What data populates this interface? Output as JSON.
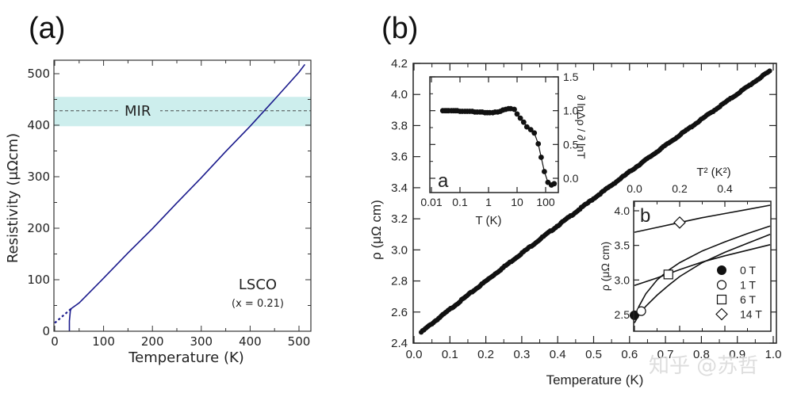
{
  "chart_data": [
    {
      "panel_label": "(a)",
      "type": "line",
      "xlabel": "Temperature (K)",
      "ylabel": "Resistivity (μΩcm)",
      "xlim": [
        0,
        520
      ],
      "ylim": [
        0,
        520
      ],
      "x_ticks": [
        0,
        100,
        200,
        300,
        400,
        500
      ],
      "y_ticks": [
        0,
        100,
        200,
        300,
        400,
        500
      ],
      "band": {
        "label": "MIR",
        "y_low": 398,
        "y_high": 455,
        "line_y": 428,
        "color": "#cdeeed"
      },
      "series": [
        {
          "name": "LSCO x=0.21 (measured)",
          "color": "#1a1a8c",
          "style": "solid",
          "x": [
            30,
            30,
            32,
            34,
            50,
            100,
            150,
            200,
            250,
            300,
            350,
            400,
            450,
            500,
            512
          ],
          "y": [
            0,
            20,
            40,
            44,
            55,
            103,
            152,
            199,
            249,
            298,
            349,
            398,
            450,
            503,
            518
          ]
        },
        {
          "name": "extrapolation",
          "color": "#1a1a8c",
          "style": "dotted",
          "x": [
            0,
            34
          ],
          "y": [
            16,
            44
          ]
        }
      ],
      "annotation": {
        "title": "LSCO",
        "subtitle": "(x = 0.21)"
      }
    },
    {
      "panel_label": "(b)",
      "type": "scatter",
      "xlabel": "Temperature (K)",
      "ylabel": "ρ (μΩ cm)",
      "xlim": [
        0.0,
        1.0
      ],
      "ylim": [
        2.4,
        4.2
      ],
      "x_ticks": [
        "0.0",
        "0.1",
        "0.2",
        "0.3",
        "0.4",
        "0.5",
        "0.6",
        "0.7",
        "0.8",
        "0.9",
        "1.0"
      ],
      "y_ticks": [
        "2.4",
        "2.6",
        "2.8",
        "3.0",
        "3.2",
        "3.4",
        "3.6",
        "3.8",
        "4.0",
        "4.2"
      ],
      "series": [
        {
          "name": "ρ(T)",
          "x_start": 0.02,
          "x_end": 0.99,
          "y_start": 2.47,
          "y_end": 4.15,
          "y_mid_value_at_0_5": 3.33
        }
      ],
      "insets": [
        {
          "label": "a",
          "type": "line",
          "xlabel": "T (K)",
          "ylabel": "∂ lnΔρ / ∂ lnT",
          "xscale": "log",
          "xlim": [
            0.01,
            300
          ],
          "ylim": [
            -0.2,
            1.5
          ],
          "x_ticks": [
            "0.01",
            "0.1",
            "1",
            "10",
            "100"
          ],
          "y_ticks": [
            "0.0",
            "0.5",
            "1.0",
            "1.5"
          ],
          "x": [
            0.025,
            0.03,
            0.035,
            0.04,
            0.05,
            0.06,
            0.07,
            0.08,
            0.1,
            0.12,
            0.15,
            0.18,
            0.22,
            0.27,
            0.33,
            0.4,
            0.5,
            0.6,
            0.75,
            0.9,
            1.1,
            1.4,
            1.7,
            2.1,
            2.6,
            3.2,
            4,
            5,
            6,
            8,
            10,
            13,
            17,
            22,
            30,
            40,
            55,
            70,
            90,
            120,
            160,
            200
          ],
          "y": [
            1.0,
            1.0,
            1.0,
            1.0,
            1.0,
            1.0,
            1.0,
            1.0,
            0.99,
            0.99,
            0.99,
            0.99,
            0.99,
            0.99,
            0.98,
            0.98,
            0.98,
            0.98,
            0.97,
            0.97,
            0.97,
            0.97,
            0.98,
            0.98,
            0.99,
            1.01,
            1.02,
            1.03,
            1.03,
            1.02,
            0.95,
            0.89,
            0.83,
            0.76,
            0.72,
            0.67,
            0.51,
            0.31,
            0.1,
            -0.06,
            -0.1,
            -0.08
          ]
        },
        {
          "label": "b",
          "type": "line",
          "ylabel": "ρ (μΩ cm)",
          "top_xlabel": "T² (K²)",
          "xlim": [
            0.0,
            0.6
          ],
          "ylim": [
            2.3,
            4.15
          ],
          "top_x_ticks": [
            "0.0",
            "0.2",
            "0.4"
          ],
          "y_ticks": [
            "2.5",
            "3.0",
            "3.5",
            "4.0"
          ],
          "legend": [
            {
              "label": "0 T",
              "marker": "filled-circle"
            },
            {
              "label": "1 T",
              "marker": "open-circle"
            },
            {
              "label": "6 T",
              "marker": "open-square"
            },
            {
              "label": "14 T",
              "marker": "open-diamond"
            }
          ],
          "series": [
            {
              "name": "0 T",
              "x": [
                0.0,
                0.02,
                0.05,
                0.1,
                0.15,
                0.2,
                0.3,
                0.4,
                0.5,
                0.6
              ],
              "y": [
                2.45,
                2.62,
                2.8,
                3.0,
                3.14,
                3.25,
                3.42,
                3.55,
                3.67,
                3.78
              ],
              "marker_at": [
                0.0,
                2.49
              ]
            },
            {
              "name": "1 T",
              "x": [
                0.0,
                0.02,
                0.05,
                0.1,
                0.15,
                0.2,
                0.3,
                0.4,
                0.5,
                0.6
              ],
              "y": [
                2.38,
                2.5,
                2.62,
                2.78,
                2.92,
                3.05,
                3.25,
                3.4,
                3.53,
                3.66
              ],
              "marker_at": [
                0.03,
                2.55
              ]
            },
            {
              "name": "6 T",
              "x": [
                0.0,
                0.1,
                0.2,
                0.3,
                0.4,
                0.5,
                0.6
              ],
              "y": [
                2.92,
                3.03,
                3.15,
                3.26,
                3.35,
                3.43,
                3.51
              ],
              "marker_at": [
                0.15,
                3.08
              ]
            },
            {
              "name": "14 T",
              "x": [
                0.0,
                0.1,
                0.2,
                0.3,
                0.4,
                0.5,
                0.6
              ],
              "y": [
                3.69,
                3.76,
                3.83,
                3.9,
                3.96,
                4.02,
                4.08
              ],
              "marker_at": [
                0.2,
                3.83
              ]
            }
          ]
        }
      ]
    }
  ],
  "watermark": "知乎 @苏哲"
}
